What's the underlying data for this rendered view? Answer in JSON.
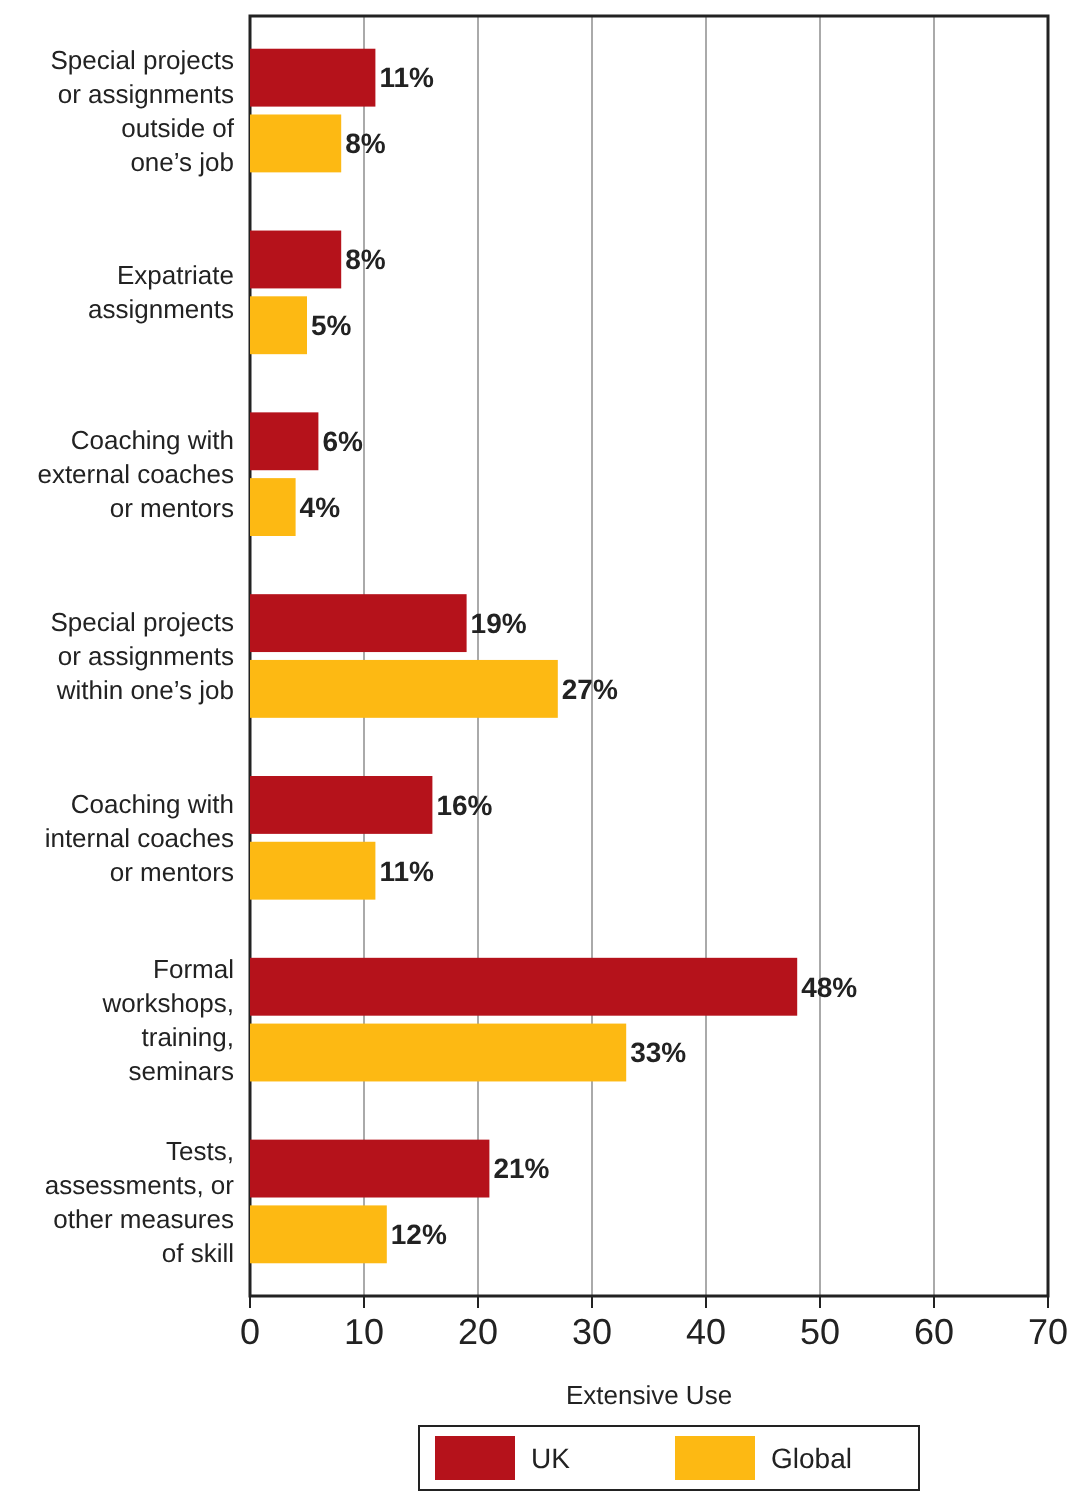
{
  "chart_data": {
    "type": "bar",
    "orientation": "horizontal",
    "xlabel": "Extensive Use",
    "categories": [
      "Special projects\nor assignments\noutside of\none’s job",
      "Expatriate\nassignments",
      "Coaching with\nexternal coaches\nor mentors",
      "Special projects\nor assignments\nwithin one’s job",
      "Coaching with\ninternal coaches\nor mentors",
      "Formal\nworkshops,\ntraining,\nseminars",
      "Tests,\nassessments, or\nother measures\nof skill"
    ],
    "series": [
      {
        "name": "UK",
        "color": "#b5121b",
        "values": [
          11,
          8,
          6,
          19,
          16,
          48,
          21
        ],
        "value_labels": [
          "11%",
          "8%",
          "6%",
          "19%",
          "16%",
          "48%",
          "21%"
        ]
      },
      {
        "name": "Global",
        "color": "#fdb913",
        "values": [
          8,
          5,
          4,
          27,
          11,
          33,
          12
        ],
        "value_labels": [
          "8%",
          "5%",
          "4%",
          "27%",
          "11%",
          "33%",
          "12%"
        ]
      }
    ],
    "xlim": [
      0,
      70
    ],
    "xticks": [
      0,
      10,
      20,
      30,
      40,
      50,
      60,
      70
    ],
    "grid": "x",
    "legend": "bottom"
  }
}
